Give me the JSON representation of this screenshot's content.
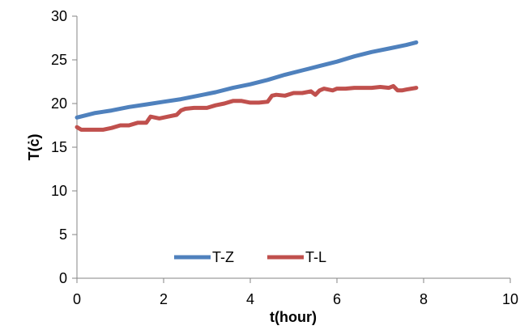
{
  "chart_data": {
    "type": "line",
    "xlabel": "t(hour)",
    "ylabel": "T(ċ)",
    "xlim": [
      0,
      10
    ],
    "ylim": [
      0,
      30
    ],
    "xticks": [
      "0",
      "2",
      "4",
      "6",
      "8",
      "10"
    ],
    "yticks": [
      "0",
      "5",
      "10",
      "15",
      "20",
      "25",
      "30"
    ],
    "grid": false,
    "legend_position": "bottom-center",
    "series": [
      {
        "name": "T-Z",
        "color": "#4f81bd",
        "x": [
          0,
          0.4,
          0.8,
          1.2,
          1.6,
          2.0,
          2.4,
          2.8,
          3.2,
          3.6,
          4.0,
          4.4,
          4.8,
          5.2,
          5.6,
          6.0,
          6.4,
          6.8,
          7.2,
          7.6,
          7.83
        ],
        "y": [
          18.4,
          18.9,
          19.2,
          19.6,
          19.9,
          20.2,
          20.5,
          20.9,
          21.3,
          21.8,
          22.2,
          22.7,
          23.3,
          23.8,
          24.3,
          24.8,
          25.4,
          25.9,
          26.3,
          26.7,
          27.0
        ]
      },
      {
        "name": "T-L",
        "color": "#c0504d",
        "x": [
          0,
          0.1,
          0.2,
          0.4,
          0.6,
          0.8,
          1.0,
          1.2,
          1.4,
          1.6,
          1.7,
          1.9,
          2.1,
          2.3,
          2.4,
          2.5,
          2.7,
          3.0,
          3.2,
          3.4,
          3.6,
          3.8,
          4.0,
          4.2,
          4.4,
          4.5,
          4.6,
          4.8,
          5.0,
          5.2,
          5.4,
          5.5,
          5.6,
          5.7,
          5.9,
          6.0,
          6.2,
          6.4,
          6.6,
          6.8,
          7.0,
          7.2,
          7.3,
          7.4,
          7.5,
          7.6,
          7.83
        ],
        "y": [
          17.3,
          17.0,
          17.0,
          17.0,
          17.0,
          17.2,
          17.5,
          17.5,
          17.8,
          17.8,
          18.5,
          18.3,
          18.5,
          18.7,
          19.2,
          19.4,
          19.5,
          19.5,
          19.8,
          20.0,
          20.3,
          20.3,
          20.1,
          20.1,
          20.2,
          20.9,
          21.0,
          20.9,
          21.2,
          21.2,
          21.4,
          21.0,
          21.5,
          21.7,
          21.5,
          21.7,
          21.7,
          21.8,
          21.8,
          21.8,
          21.9,
          21.8,
          22.0,
          21.5,
          21.5,
          21.6,
          21.8
        ]
      }
    ]
  }
}
